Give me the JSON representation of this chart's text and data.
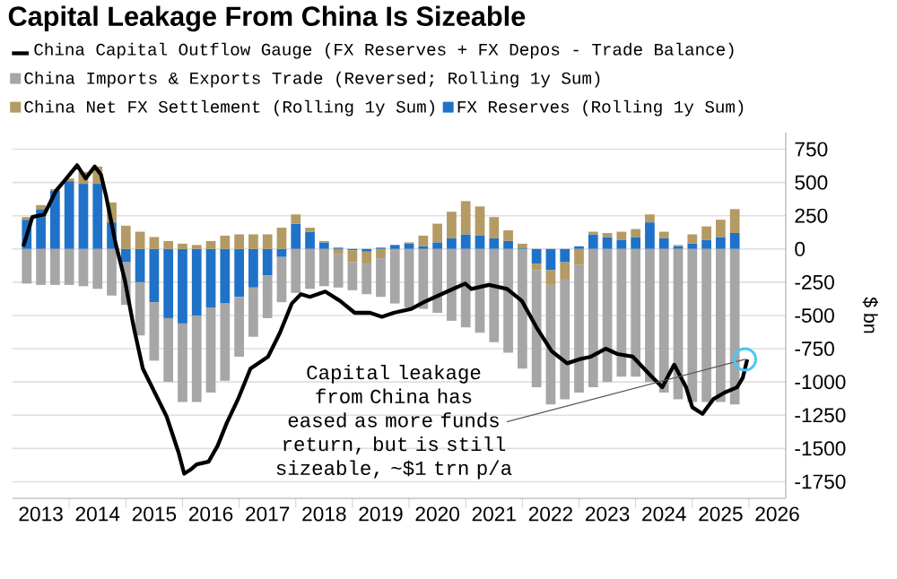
{
  "chart_data": {
    "type": "bar",
    "title": "Capital Leakage From China Is Sizeable",
    "ylabel": "$ bn",
    "x": [
      2013.25,
      2013.5,
      2013.75,
      2014.0,
      2014.25,
      2014.5,
      2014.75,
      2015.0,
      2015.25,
      2015.5,
      2015.75,
      2016.0,
      2016.25,
      2016.5,
      2016.75,
      2017.0,
      2017.25,
      2017.5,
      2017.75,
      2018.0,
      2018.25,
      2018.5,
      2018.75,
      2019.0,
      2019.25,
      2019.5,
      2019.75,
      2020.0,
      2020.25,
      2020.5,
      2020.75,
      2021.0,
      2021.25,
      2021.5,
      2021.75,
      2022.0,
      2022.25,
      2022.5,
      2022.75,
      2023.0,
      2023.25,
      2023.5,
      2023.75,
      2024.0,
      2024.25,
      2024.5,
      2024.75,
      2025.0,
      2025.25,
      2025.5,
      2025.75
    ],
    "series": [
      {
        "name": "China Capital Outflow Gauge (FX Reserves + FX Depos - Trade Balance)",
        "type": "line",
        "color": "#000000",
        "x": [
          2013.19,
          2013.35,
          2013.56,
          2013.77,
          2013.93,
          2014.14,
          2014.29,
          2014.45,
          2014.56,
          2014.65,
          2014.82,
          2014.98,
          2015.14,
          2015.3,
          2015.51,
          2015.72,
          2015.93,
          2016.03,
          2016.14,
          2016.25,
          2016.46,
          2016.62,
          2016.78,
          2016.98,
          2017.2,
          2017.51,
          2017.72,
          2017.93,
          2018.09,
          2018.25,
          2018.52,
          2018.78,
          2019.04,
          2019.31,
          2019.52,
          2019.73,
          2020.04,
          2020.26,
          2020.57,
          2020.99,
          2021.1,
          2021.41,
          2021.73,
          2021.99,
          2022.25,
          2022.52,
          2022.79,
          2023.0,
          2023.21,
          2023.47,
          2023.68,
          2023.95,
          2024.26,
          2024.47,
          2024.68,
          2024.89,
          2025.0,
          2025.18,
          2025.37,
          2025.57,
          2025.79,
          2025.89,
          2025.97
        ],
        "values": [
          20,
          240,
          260,
          440,
          520,
          630,
          530,
          620,
          560,
          400,
          40,
          -230,
          -590,
          -900,
          -1080,
          -1260,
          -1530,
          -1690,
          -1660,
          -1620,
          -1600,
          -1480,
          -1310,
          -1130,
          -900,
          -810,
          -630,
          -410,
          -340,
          -360,
          -320,
          -390,
          -480,
          -480,
          -510,
          -480,
          -450,
          -400,
          -340,
          -260,
          -300,
          -270,
          -300,
          -390,
          -590,
          -770,
          -860,
          -830,
          -810,
          -750,
          -790,
          -810,
          -950,
          -1040,
          -870,
          -1040,
          -1190,
          -1240,
          -1130,
          -1080,
          -1040,
          -970,
          -830
        ]
      },
      {
        "name": "FX Reserves (Rolling 1y Sum)",
        "color": "#1f72c8",
        "values": [
          220,
          300,
          440,
          510,
          490,
          490,
          200,
          -100,
          -250,
          -400,
          -520,
          -560,
          -500,
          -440,
          -410,
          -360,
          -290,
          -200,
          -60,
          190,
          130,
          50,
          10,
          -10,
          -20,
          10,
          30,
          40,
          20,
          50,
          80,
          110,
          100,
          80,
          60,
          10,
          -110,
          -160,
          -100,
          20,
          110,
          90,
          70,
          90,
          200,
          80,
          20,
          40,
          70,
          90,
          120
        ]
      },
      {
        "name": "China Net FX Settlement (Rolling 1y Sum)",
        "color": "#b49a64",
        "values": [
          20,
          30,
          10,
          20,
          90,
          130,
          150,
          175,
          130,
          90,
          60,
          40,
          30,
          60,
          100,
          110,
          110,
          110,
          160,
          70,
          30,
          10,
          -40,
          -90,
          -90,
          -70,
          -10,
          10,
          80,
          140,
          200,
          250,
          220,
          160,
          80,
          30,
          -50,
          -110,
          -130,
          -120,
          20,
          30,
          60,
          60,
          60,
          50,
          10,
          70,
          100,
          130,
          180
        ]
      },
      {
        "name": "China Imports & Exports Trade (Reversed; Rolling 1y Sum)",
        "color": "#a6a6a6",
        "values": [
          -260,
          -270,
          -270,
          -270,
          -280,
          -300,
          -350,
          -320,
          -400,
          -440,
          -480,
          -590,
          -650,
          -640,
          -580,
          -450,
          -370,
          -320,
          -340,
          -330,
          -300,
          -280,
          -250,
          -210,
          -230,
          -290,
          -400,
          -440,
          -450,
          -480,
          -540,
          -590,
          -630,
          -700,
          -780,
          -900,
          -880,
          -900,
          -900,
          -960,
          -1040,
          -1000,
          -960,
          -960,
          -1000,
          -1080,
          -1130,
          -1150,
          -1150,
          -1150,
          -1170
        ]
      }
    ],
    "stacked": true,
    "xlim": [
      2013.0,
      2026.65
    ],
    "ylim": [
      -1875,
      875
    ],
    "xticks": [
      {
        "value": 2013.5,
        "label": "2013"
      },
      {
        "value": 2014.5,
        "label": "2014"
      },
      {
        "value": 2015.5,
        "label": "2015"
      },
      {
        "value": 2016.5,
        "label": "2016"
      },
      {
        "value": 2017.5,
        "label": "2017"
      },
      {
        "value": 2018.5,
        "label": "2018"
      },
      {
        "value": 2019.5,
        "label": "2019"
      },
      {
        "value": 2020.5,
        "label": "2020"
      },
      {
        "value": 2021.5,
        "label": "2021"
      },
      {
        "value": 2022.5,
        "label": "2022"
      },
      {
        "value": 2023.5,
        "label": "2023"
      },
      {
        "value": 2024.5,
        "label": "2024"
      },
      {
        "value": 2025.5,
        "label": "2025"
      },
      {
        "value": 2026.5,
        "label": "2026"
      },
      {
        "value": 2014,
        "label": null
      },
      {
        "value": 2015,
        "label": null
      },
      {
        "value": 2016,
        "label": null
      },
      {
        "value": 2017,
        "label": null
      },
      {
        "value": 2018,
        "label": null
      },
      {
        "value": 2019,
        "label": null
      },
      {
        "value": 2020,
        "label": null
      },
      {
        "value": 2021,
        "label": null
      },
      {
        "value": 2022,
        "label": null
      },
      {
        "value": 2023,
        "label": null
      },
      {
        "value": 2024,
        "label": null
      },
      {
        "value": 2025,
        "label": null
      },
      {
        "value": 2026,
        "label": null
      }
    ],
    "yticks": [
      750,
      500,
      250,
      0,
      -250,
      -500,
      -750,
      -1000,
      -1250,
      -1500,
      -1750
    ],
    "grid": "y",
    "legend": "top",
    "annotations": [
      {
        "text": "Capital leakage from China has eased as more funds return, but is still sizeable, ~$1 trn p/a",
        "x": 2025.93,
        "y": -830
      }
    ]
  }
}
